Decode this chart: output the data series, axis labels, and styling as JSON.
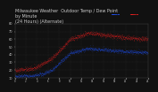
{
  "title": "Milwaukee Weather  Outdoor Temp / Dew Point\nby Minute\n(24 Hours) (Alternate)",
  "title_fontsize": 3.5,
  "background_color": "#111111",
  "plot_bg_color": "#111111",
  "temp_color": "#ff2222",
  "dew_color": "#2255ff",
  "grid_color": "#444444",
  "text_color": "#cccccc",
  "ylim": [
    10,
    80
  ],
  "yticks": [
    10,
    20,
    30,
    40,
    50,
    60,
    70,
    80
  ],
  "ytick_fontsize": 2.5,
  "xtick_fontsize": 1.8,
  "num_points": 1440,
  "temp_seed": 42,
  "dew_seed": 99
}
